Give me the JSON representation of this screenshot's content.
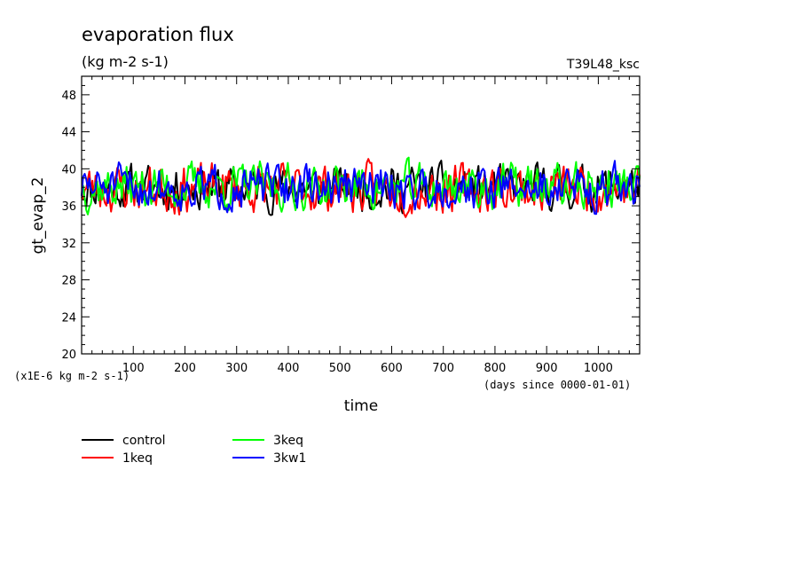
{
  "chart_data": {
    "type": "line",
    "title": "evaporation flux",
    "subtitle": "(kg m-2 s-1)",
    "run_label": "T39L48_ksc",
    "ylabel": "gt_evap_2",
    "xlabel": "time",
    "y_unit_note": "(x1E-6 kg m-2 s-1)",
    "x_unit_note": "(days since 0000-01-01)",
    "xlim": [
      0,
      1080
    ],
    "ylim": [
      20,
      50
    ],
    "x_ticks": [
      100,
      200,
      300,
      400,
      500,
      600,
      700,
      800,
      900,
      1000
    ],
    "y_ticks": [
      20,
      24,
      28,
      32,
      36,
      40,
      44,
      48
    ],
    "legend": "below",
    "grid": false,
    "series": [
      {
        "name": "control",
        "color": "#000000",
        "mean": 38.0,
        "amp": 1.7,
        "seed": 11
      },
      {
        "name": "1keq",
        "color": "#ff0000",
        "mean": 37.9,
        "amp": 1.9,
        "seed": 23
      },
      {
        "name": "3keq",
        "color": "#00ff00",
        "mean": 38.1,
        "amp": 1.8,
        "seed": 37
      },
      {
        "name": "3kw1",
        "color": "#0000ff",
        "mean": 38.0,
        "amp": 1.7,
        "seed": 51
      }
    ]
  }
}
